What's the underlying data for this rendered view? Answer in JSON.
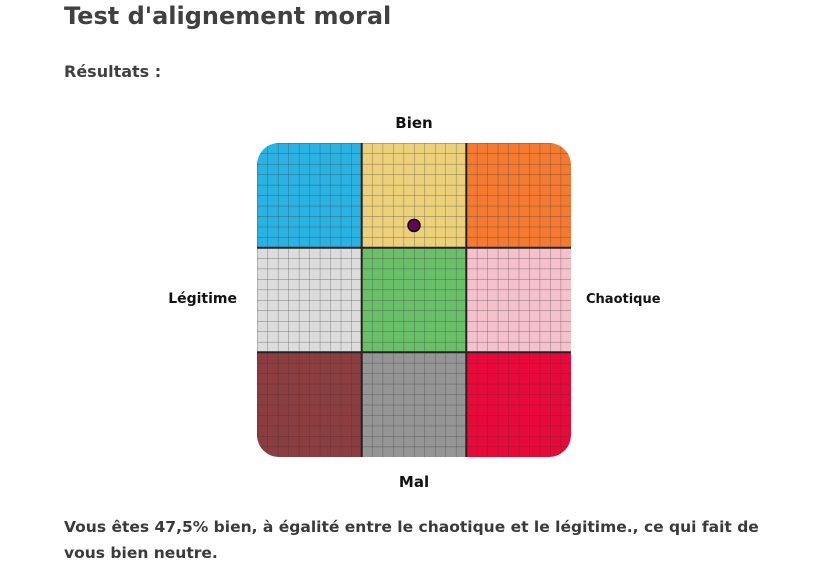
{
  "page": {
    "title": "Test d'alignement moral",
    "results_heading": "Résultats :",
    "result_text": "Vous êtes 47,5% bien, à égalité entre le chaotique et le légitime., ce qui fait de vous bien neutre."
  },
  "grid": {
    "labels": {
      "top": "Bien",
      "bottom": "Mal",
      "left": "Légitime",
      "right": "Chaotique"
    },
    "cells": [
      {
        "name": "lawful-good",
        "color": "#2ab2e2"
      },
      {
        "name": "neutral-good",
        "color": "#ecd07a"
      },
      {
        "name": "chaotic-good",
        "color": "#f47a32"
      },
      {
        "name": "lawful-neutral",
        "color": "#dcdcdc"
      },
      {
        "name": "true-neutral",
        "color": "#6abf69"
      },
      {
        "name": "chaotic-neutral",
        "color": "#f5c1cd"
      },
      {
        "name": "lawful-evil",
        "color": "#8c3d3f"
      },
      {
        "name": "neutral-evil",
        "color": "#959595"
      },
      {
        "name": "chaotic-evil",
        "color": "#e8093a"
      }
    ],
    "marker": {
      "good_percent": 47.5,
      "chaos_percent": 50,
      "color": "#5a0d55"
    }
  }
}
